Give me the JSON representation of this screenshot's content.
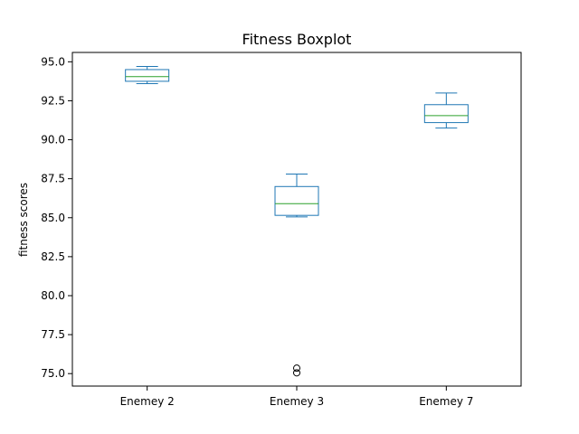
{
  "chart_data": {
    "type": "boxplot",
    "title": "Fitness Boxplot",
    "xlabel": "",
    "ylabel": "fitness scores",
    "ylim": [
      74.2,
      95.6
    ],
    "yticks": [
      "75.0",
      "77.5",
      "80.0",
      "82.5",
      "85.0",
      "87.5",
      "90.0",
      "92.5",
      "95.0"
    ],
    "grid": false,
    "colors": {
      "box": "#1f77b4",
      "median": "#2ca02c",
      "outlier": "#000000"
    },
    "series": [
      {
        "category": "Enemey 2",
        "whisker_low": 93.6,
        "q1": 93.75,
        "median": 94.05,
        "q3": 94.5,
        "whisker_high": 94.7,
        "outliers": []
      },
      {
        "category": "Enemey 3",
        "whisker_low": 85.05,
        "q1": 85.15,
        "median": 85.9,
        "q3": 87.0,
        "whisker_high": 87.8,
        "outliers": [
          75.05,
          75.35
        ]
      },
      {
        "category": "Enemey 7",
        "whisker_low": 90.75,
        "q1": 91.1,
        "median": 91.55,
        "q3": 92.25,
        "whisker_high": 93.0,
        "outliers": []
      }
    ]
  }
}
